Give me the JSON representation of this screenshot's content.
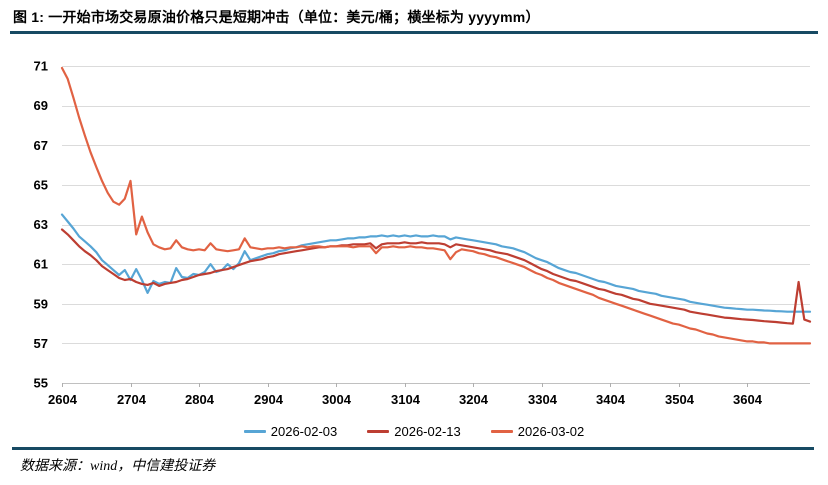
{
  "header": {
    "title": "图 1: 一开始市场交易原油价格只是短期冲击（单位：美元/桶；横坐标为 yyyymm）"
  },
  "footer": {
    "source": "数据来源：wind，中信建投证券"
  },
  "colors": {
    "separator_rule": "#174A63",
    "grid": "#DBDBDB",
    "axis": "#C0C0C0",
    "tick": "#AFAFAF",
    "text": "#000000"
  },
  "chart_data": {
    "type": "line",
    "title": "一开始市场交易原油价格只是短期冲击",
    "unit": "美元/桶",
    "x_axis_note": "横坐标为 yyyymm",
    "ylim": [
      55,
      71
    ],
    "y_ticks": [
      55,
      57,
      59,
      61,
      63,
      65,
      67,
      69,
      71
    ],
    "x_tick_labels": [
      "2604",
      "2704",
      "2804",
      "2904",
      "3004",
      "3104",
      "3204",
      "3304",
      "3404",
      "3504",
      "3604"
    ],
    "grid": "horizontal",
    "legend_position": "bottom",
    "x": [
      2604,
      2605,
      2606,
      2607,
      2608,
      2609,
      2610,
      2611,
      2612,
      2701,
      2702,
      2703,
      2704,
      2705,
      2706,
      2707,
      2708,
      2709,
      2710,
      2711,
      2712,
      2801,
      2802,
      2803,
      2804,
      2805,
      2806,
      2807,
      2808,
      2809,
      2810,
      2811,
      2812,
      2901,
      2902,
      2903,
      2904,
      2905,
      2906,
      2907,
      2908,
      2909,
      2910,
      2911,
      2912,
      3001,
      3002,
      3003,
      3004,
      3005,
      3006,
      3007,
      3008,
      3009,
      3010,
      3011,
      3012,
      3101,
      3102,
      3103,
      3104,
      3105,
      3106,
      3107,
      3108,
      3109,
      3110,
      3111,
      3112,
      3201,
      3202,
      3203,
      3204,
      3205,
      3206,
      3207,
      3208,
      3209,
      3210,
      3211,
      3212,
      3301,
      3302,
      3303,
      3304,
      3305,
      3306,
      3307,
      3308,
      3309,
      3310,
      3311,
      3312,
      3401,
      3402,
      3403,
      3404,
      3405,
      3406,
      3407,
      3408,
      3409,
      3410,
      3411,
      3412,
      3501,
      3502,
      3503,
      3504,
      3505,
      3506,
      3507,
      3508,
      3509,
      3510,
      3511,
      3512,
      3601,
      3602,
      3603,
      3604,
      3605,
      3606,
      3607,
      3608,
      3609,
      3610,
      3611,
      3612,
      3701,
      3702,
      3703
    ],
    "series": [
      {
        "name": "2026-02-03",
        "color": "#57A5D5",
        "values": [
          63.5,
          63.15,
          62.8,
          62.4,
          62.15,
          61.9,
          61.6,
          61.2,
          60.95,
          60.7,
          60.45,
          60.7,
          60.2,
          60.75,
          60.2,
          59.55,
          60.15,
          60.0,
          60.1,
          60.05,
          60.8,
          60.35,
          60.3,
          60.5,
          60.45,
          60.6,
          61.0,
          60.6,
          60.7,
          61.0,
          60.75,
          61.05,
          61.65,
          61.2,
          61.3,
          61.4,
          61.5,
          61.55,
          61.65,
          61.7,
          61.8,
          61.85,
          61.95,
          62.0,
          62.05,
          62.1,
          62.15,
          62.2,
          62.2,
          62.25,
          62.3,
          62.3,
          62.35,
          62.35,
          62.4,
          62.4,
          62.45,
          62.4,
          62.45,
          62.4,
          62.45,
          62.4,
          62.45,
          62.4,
          62.4,
          62.45,
          62.4,
          62.4,
          62.25,
          62.35,
          62.3,
          62.25,
          62.2,
          62.15,
          62.1,
          62.05,
          62.0,
          61.9,
          61.85,
          61.8,
          61.7,
          61.6,
          61.45,
          61.3,
          61.2,
          61.1,
          60.95,
          60.8,
          60.7,
          60.6,
          60.55,
          60.45,
          60.35,
          60.25,
          60.15,
          60.1,
          60.0,
          59.9,
          59.85,
          59.8,
          59.75,
          59.65,
          59.6,
          59.55,
          59.5,
          59.4,
          59.35,
          59.3,
          59.25,
          59.2,
          59.1,
          59.05,
          59.0,
          58.95,
          58.9,
          58.85,
          58.8,
          58.78,
          58.75,
          58.73,
          58.7,
          58.7,
          58.68,
          58.66,
          58.65,
          58.63,
          58.62,
          58.6,
          58.6,
          58.6,
          58.6,
          58.6
        ]
      },
      {
        "name": "2026-02-13",
        "color": "#BD3E32",
        "values": [
          62.75,
          62.5,
          62.2,
          61.9,
          61.65,
          61.45,
          61.2,
          60.9,
          60.7,
          60.5,
          60.3,
          60.2,
          60.25,
          60.1,
          60.0,
          59.95,
          60.05,
          59.9,
          60.0,
          60.05,
          60.1,
          60.2,
          60.25,
          60.35,
          60.45,
          60.5,
          60.55,
          60.65,
          60.7,
          60.75,
          60.85,
          60.95,
          61.05,
          61.15,
          61.2,
          61.25,
          61.35,
          61.4,
          61.5,
          61.55,
          61.6,
          61.65,
          61.7,
          61.75,
          61.8,
          61.85,
          61.85,
          61.9,
          61.9,
          61.95,
          61.95,
          62.0,
          62.0,
          62.0,
          62.05,
          61.8,
          62.0,
          62.05,
          62.05,
          62.05,
          62.1,
          62.05,
          62.05,
          62.1,
          62.05,
          62.05,
          62.05,
          62.0,
          61.85,
          62.0,
          61.95,
          61.9,
          61.85,
          61.8,
          61.75,
          61.7,
          61.6,
          61.55,
          61.5,
          61.4,
          61.3,
          61.2,
          61.05,
          60.9,
          60.75,
          60.65,
          60.5,
          60.4,
          60.3,
          60.2,
          60.15,
          60.05,
          59.95,
          59.85,
          59.75,
          59.7,
          59.6,
          59.5,
          59.45,
          59.35,
          59.25,
          59.2,
          59.1,
          59.0,
          58.95,
          58.9,
          58.85,
          58.8,
          58.75,
          58.7,
          58.6,
          58.55,
          58.5,
          58.45,
          58.4,
          58.35,
          58.3,
          58.28,
          58.25,
          58.22,
          58.2,
          58.18,
          58.15,
          58.12,
          58.1,
          58.08,
          58.05,
          58.02,
          58.0,
          60.1,
          58.2,
          58.1
        ]
      },
      {
        "name": "2026-03-02",
        "color": "#E16243",
        "values": [
          70.9,
          70.35,
          69.4,
          68.4,
          67.5,
          66.65,
          65.9,
          65.2,
          64.6,
          64.15,
          64.0,
          64.3,
          65.2,
          62.5,
          63.4,
          62.6,
          62.0,
          61.85,
          61.75,
          61.8,
          62.2,
          61.85,
          61.75,
          61.7,
          61.75,
          61.7,
          62.05,
          61.75,
          61.7,
          61.65,
          61.7,
          61.75,
          62.3,
          61.85,
          61.8,
          61.75,
          61.8,
          61.8,
          61.85,
          61.8,
          61.85,
          61.85,
          61.9,
          61.85,
          61.9,
          61.9,
          61.85,
          61.9,
          61.9,
          61.9,
          61.9,
          61.85,
          61.9,
          61.9,
          61.9,
          61.55,
          61.85,
          61.85,
          61.9,
          61.85,
          61.85,
          61.9,
          61.85,
          61.85,
          61.8,
          61.8,
          61.75,
          61.7,
          61.25,
          61.6,
          61.75,
          61.7,
          61.65,
          61.55,
          61.5,
          61.4,
          61.35,
          61.25,
          61.15,
          61.05,
          60.95,
          60.85,
          60.7,
          60.55,
          60.45,
          60.3,
          60.2,
          60.05,
          59.95,
          59.85,
          59.75,
          59.65,
          59.55,
          59.45,
          59.3,
          59.2,
          59.1,
          59.0,
          58.9,
          58.8,
          58.7,
          58.6,
          58.5,
          58.4,
          58.3,
          58.2,
          58.1,
          58.0,
          57.95,
          57.85,
          57.75,
          57.7,
          57.6,
          57.5,
          57.45,
          57.35,
          57.3,
          57.25,
          57.2,
          57.15,
          57.1,
          57.1,
          57.05,
          57.05,
          57.0,
          57.0,
          57.0,
          57.0,
          57.0,
          57.0,
          57.0,
          57.0
        ]
      }
    ]
  }
}
